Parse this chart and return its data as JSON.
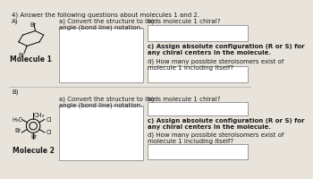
{
  "title": "4) Answer the following questions about molecules 1 and 2.",
  "sec_A": "A)",
  "sec_B": "B)",
  "mol1_label": "Molecule 1",
  "mol2_label": "Molecule 2",
  "qa": "a) Convert the structure to line\nangle (bond line) notation.",
  "qb": "b) Is molecule 1 chiral?",
  "qc": "c) Assign absolute configuration (R or S) for\nany chiral centers in the molecule.",
  "qd": "d) How many possible steroisomers exist of\nmolecule 1 including itself?",
  "bg_color": "#e8e4dc",
  "box_color": "#ffffff",
  "box_edge": "#999999",
  "text_color": "#1a1a1a"
}
